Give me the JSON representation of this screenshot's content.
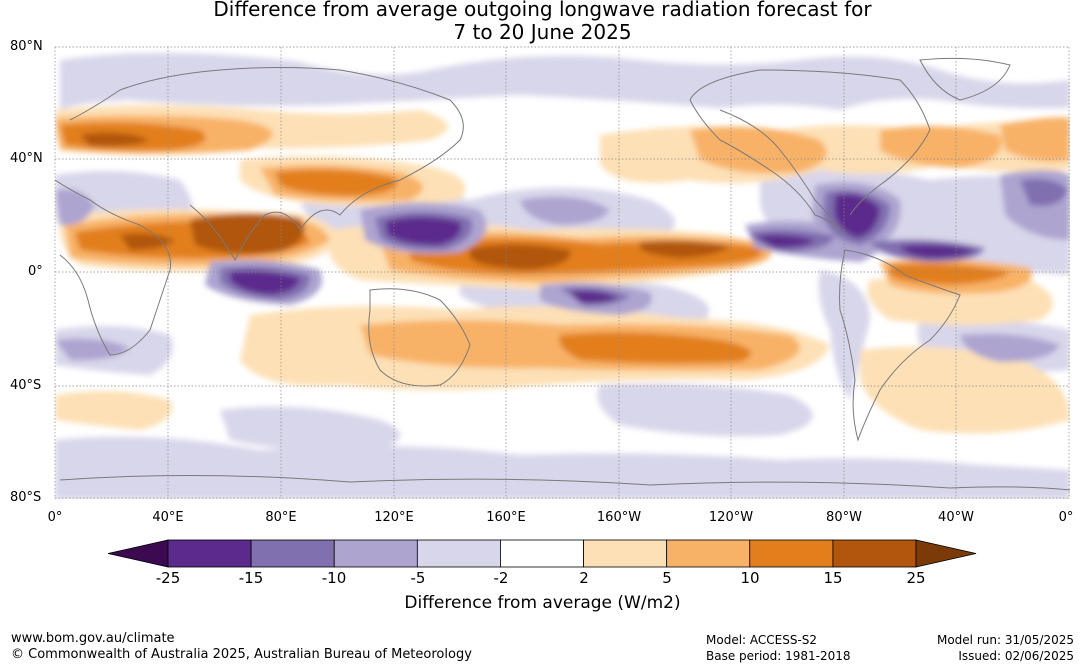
{
  "title": {
    "line1": "Difference from average outgoing longwave radiation forecast for",
    "line2": "7 to 20 June 2025"
  },
  "map": {
    "lat_labels": [
      "80°N",
      "40°N",
      "0°",
      "40°S",
      "80°S"
    ],
    "lon_labels": [
      "0°",
      "40°E",
      "80°E",
      "120°E",
      "160°E",
      "160°W",
      "120°W",
      "80°W",
      "40°W",
      "0°"
    ],
    "ocean_color": "#ffffff",
    "land_outline_color": "#7a7a7a",
    "grid": true
  },
  "colorbar": {
    "tick_labels": [
      "-25",
      "-15",
      "-10",
      "-5",
      "-2",
      "2",
      "5",
      "10",
      "15",
      "25"
    ],
    "colors": [
      "#3b0a50",
      "#5b2a8c",
      "#8170b0",
      "#ada4d0",
      "#d8d6ea",
      "#ffffff",
      "#fde0b6",
      "#f8b267",
      "#e27f1c",
      "#b1560c",
      "#7b3a08"
    ],
    "label": "Difference from average (W/m2)"
  },
  "footer": {
    "website": "www.bom.gov.au/climate",
    "copyright": "© Commonwealth of Australia 2025, Australian Bureau of Meteorology",
    "model": "Model: ACCESS-S2",
    "base_period": "Base period: 1981-2018",
    "model_run": "Model run: 31/05/2025",
    "issued": "Issued: 02/06/2025"
  }
}
